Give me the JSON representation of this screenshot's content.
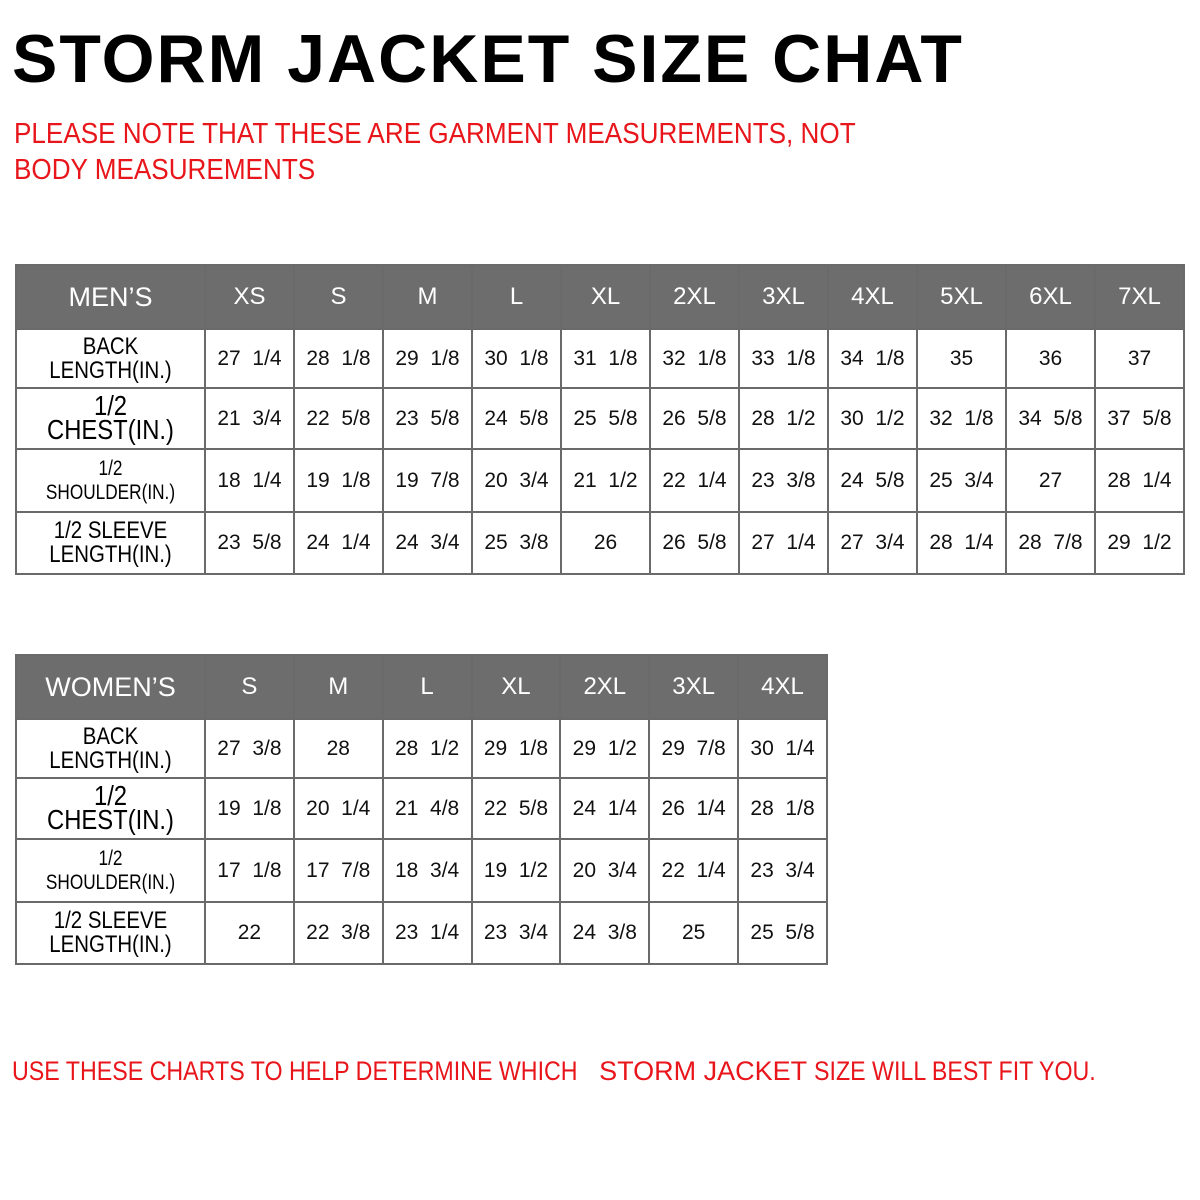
{
  "title": "STORM JACKET SIZE CHAT",
  "note": "PLEASE NOTE THAT THESE ARE GARMENT MEASUREMENTS, NOT BODY MEASUREMENTS",
  "colors": {
    "header_bg": "#6d6d6d",
    "note_red": "#e8151b"
  },
  "mens": {
    "header": "MEN’S",
    "sizes": [
      "XS",
      "S",
      "M",
      "L",
      "XL",
      "2XL",
      "3XL",
      "4XL",
      "5XL",
      "6XL",
      "7XL"
    ],
    "rows": [
      {
        "label": "BACK LENGTH(IN.)",
        "values": [
          "27  1/4",
          "28  1/8",
          "29  1/8",
          "30  1/8",
          "31  1/8",
          "32  1/8",
          "33  1/8",
          "34  1/8",
          "35",
          "36",
          "37"
        ]
      },
      {
        "label": "1/2  CHEST(IN.)",
        "values": [
          "21  3/4",
          "22  5/8",
          "23  5/8",
          "24  5/8",
          "25  5/8",
          "26  5/8",
          "28  1/2",
          "30  1/2",
          "32  1/8",
          "34  5/8",
          "37  5/8"
        ]
      },
      {
        "label": "1/2  SHOULDER(IN.)",
        "values": [
          "18  1/4",
          "19  1/8",
          "19  7/8",
          "20  3/4",
          "21  1/2",
          "22  1/4",
          "23  3/8",
          "24  5/8",
          "25  3/4",
          "27",
          "28  1/4"
        ]
      },
      {
        "label": "1/2  SLEEVE LENGTH(IN.)",
        "values": [
          "23  5/8",
          "24  1/4",
          "24  3/4",
          "25  3/8",
          "26",
          "26  5/8",
          "27  1/4",
          "27  3/4",
          "28  1/4",
          "28  7/8",
          "29  1/2"
        ]
      }
    ]
  },
  "womens": {
    "header": "WOMEN’S",
    "sizes": [
      "S",
      "M",
      "L",
      "XL",
      "2XL",
      "3XL",
      "4XL"
    ],
    "rows": [
      {
        "label": "BACK LENGTH(IN.)",
        "values": [
          "27  3/8",
          "28",
          "28  1/2",
          "29  1/8",
          "29  1/2",
          "29  7/8",
          "30  1/4"
        ]
      },
      {
        "label": "1/2  CHEST(IN.)",
        "values": [
          "19  1/8",
          "20  1/4",
          "21  4/8",
          "22  5/8",
          "24  1/4",
          "26  1/4",
          "28  1/8"
        ]
      },
      {
        "label": "1/2  SHOULDER(IN.)",
        "values": [
          "17  1/8",
          "17  7/8",
          "18  3/4",
          "19  1/2",
          "20  3/4",
          "22  1/4",
          "23  3/4"
        ]
      },
      {
        "label": "1/2  SLEEVE LENGTH(IN.)",
        "values": [
          "22",
          "22  3/8",
          "23  1/4",
          "23  3/4",
          "24  3/8",
          "25",
          "25  5/8"
        ]
      }
    ]
  },
  "footer": {
    "part1": "USE THESE CHARTS TO HELP DETERMINE WHICH",
    "part2": "STORM JACKET",
    "part3": "SIZE WILL BEST FIT YOU."
  }
}
